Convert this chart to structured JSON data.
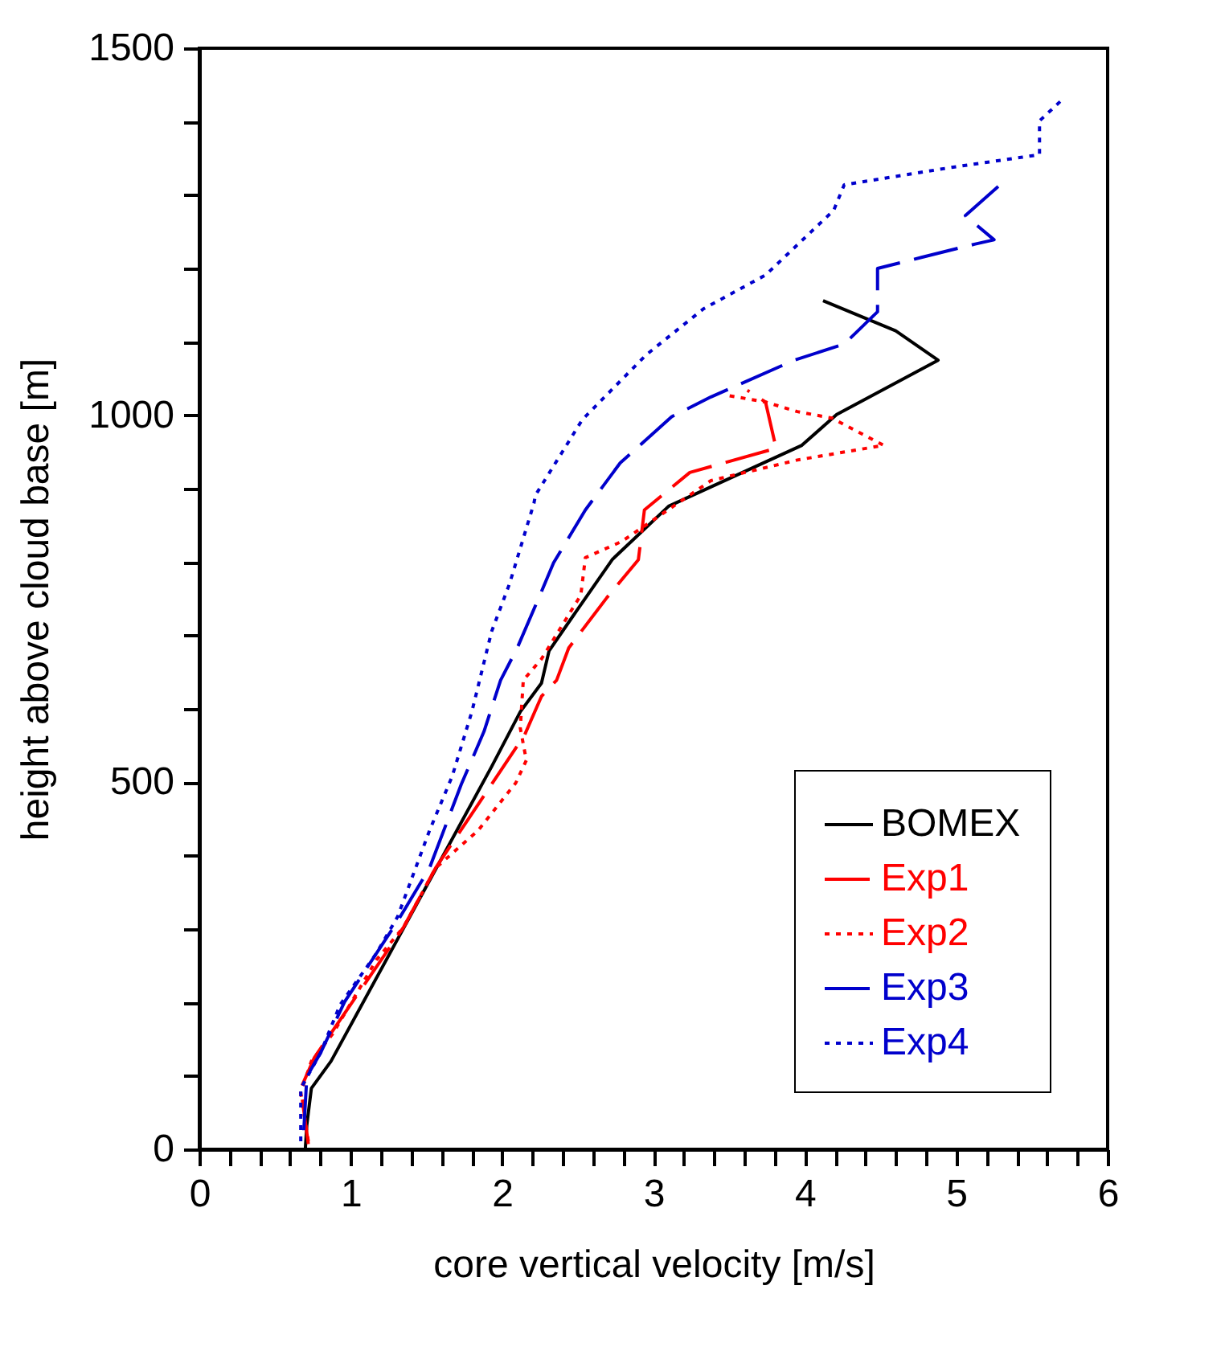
{
  "chart_data": {
    "type": "line",
    "xlabel": "core vertical velocity [m/s]",
    "ylabel": "height above cloud base [m]",
    "xlim": [
      0,
      6
    ],
    "ylim": [
      0,
      1500
    ],
    "xticks": [
      0,
      {
        "value": 0.2,
        "label": null
      },
      {
        "value": 0.4,
        "label": null
      },
      {
        "value": 0.6,
        "label": null
      },
      {
        "value": 0.8,
        "label": null
      },
      1,
      {
        "value": 1.2,
        "label": null
      },
      {
        "value": 1.4,
        "label": null
      },
      {
        "value": 1.6,
        "label": null
      },
      {
        "value": 1.8,
        "label": null
      },
      2,
      {
        "value": 2.2,
        "label": null
      },
      {
        "value": 2.4,
        "label": null
      },
      {
        "value": 2.6,
        "label": null
      },
      {
        "value": 2.8,
        "label": null
      },
      3,
      {
        "value": 3.2,
        "label": null
      },
      {
        "value": 3.4,
        "label": null
      },
      {
        "value": 3.6,
        "label": null
      },
      {
        "value": 3.8,
        "label": null
      },
      4,
      {
        "value": 4.2,
        "label": null
      },
      {
        "value": 4.4,
        "label": null
      },
      {
        "value": 4.6,
        "label": null
      },
      {
        "value": 4.8,
        "label": null
      },
      5,
      {
        "value": 5.2,
        "label": null
      },
      {
        "value": 5.4,
        "label": null
      },
      {
        "value": 5.6,
        "label": null
      },
      {
        "value": 5.8,
        "label": null
      },
      6
    ],
    "yticks": [
      0,
      {
        "value": 100,
        "label": null
      },
      {
        "value": 200,
        "label": null
      },
      {
        "value": 300,
        "label": null
      },
      {
        "value": 400,
        "label": null
      },
      500,
      {
        "value": 600,
        "label": null
      },
      {
        "value": 700,
        "label": null
      },
      {
        "value": 800,
        "label": null
      },
      {
        "value": 900,
        "label": null
      },
      1000,
      {
        "value": 1100,
        "label": null
      },
      {
        "value": 1200,
        "label": null
      },
      {
        "value": 1300,
        "label": null
      },
      {
        "value": 1400,
        "label": null
      },
      1500
    ],
    "grid": false,
    "legend": "bottom right",
    "marker": "none",
    "series": [
      {
        "name": "BOMEX",
        "color": "#000000",
        "line_style": "solid",
        "x": [
          0.7,
          0.71,
          0.74,
          0.87,
          1.93,
          2.12,
          2.26,
          2.31,
          2.47,
          2.73,
          3.1,
          3.98,
          4.21,
          4.88,
          4.6,
          4.12
        ],
        "values": [
          0,
          33,
          83,
          120,
          521,
          596,
          635,
          679,
          727,
          804,
          876,
          959,
          1001,
          1075,
          1115,
          1156
        ]
      },
      {
        "name": "Exp1",
        "color": "#ff0000",
        "line_style": "dashed",
        "x": [
          0.72,
          0.67,
          0.76,
          1.35,
          1.56,
          1.93,
          2.15,
          2.26,
          2.36,
          2.44,
          2.69,
          2.9,
          2.94,
          3.24,
          3.81,
          3.74,
          3.62
        ],
        "values": [
          7,
          83,
          125,
          303,
          383,
          497,
          565,
          617,
          639,
          683,
          751,
          803,
          871,
          922,
          955,
          1018,
          1034
        ]
      },
      {
        "name": "Exp2",
        "color": "#ff0000",
        "line_style": "dotted",
        "x": [
          0.72,
          0.67,
          0.74,
          0.88,
          1.17,
          1.35,
          1.56,
          1.84,
          2.09,
          2.16,
          2.12,
          2.14,
          2.26,
          2.52,
          2.55,
          2.79,
          3.16,
          3.38,
          3.95,
          4.52,
          4.18,
          3.95,
          3.74,
          3.49
        ],
        "values": [
          11,
          77,
          120,
          157,
          258,
          303,
          383,
          434,
          499,
          530,
          574,
          639,
          668,
          755,
          806,
          828,
          880,
          911,
          939,
          959,
          996,
          1005,
          1018,
          1027
        ]
      },
      {
        "name": "Exp3",
        "color": "#0000cc",
        "line_style": "dashed",
        "x": [
          0.69,
          0.71,
          0.8,
          0.96,
          1.31,
          1.52,
          1.73,
          1.88,
          1.99,
          2.1,
          2.25,
          2.34,
          2.55,
          2.78,
          3.12,
          3.38,
          3.93,
          4.26,
          4.48,
          4.48,
          4.77,
          5.12,
          5.25,
          5.06,
          5.29
        ],
        "values": [
          26,
          99,
          131,
          201,
          311,
          383,
          497,
          569,
          639,
          683,
          755,
          799,
          871,
          935,
          998,
          1025,
          1075,
          1097,
          1141,
          1200,
          1215,
          1233,
          1239,
          1272,
          1314
        ]
      },
      {
        "name": "Exp4",
        "color": "#0000cc",
        "line_style": "dotted",
        "x": [
          0.67,
          0.67,
          0.8,
          0.93,
          1.17,
          1.31,
          1.52,
          1.67,
          1.8,
          1.93,
          2.05,
          2.21,
          2.22,
          2.53,
          2.95,
          3.33,
          3.74,
          4.19,
          4.26,
          4.98,
          5.55,
          5.55,
          5.69
        ],
        "values": [
          11,
          83,
          131,
          197,
          267,
          317,
          434,
          508,
          596,
          705,
          771,
          880,
          891,
          994,
          1082,
          1145,
          1191,
          1279,
          1314,
          1338,
          1355,
          1401,
          1428
        ]
      }
    ]
  }
}
